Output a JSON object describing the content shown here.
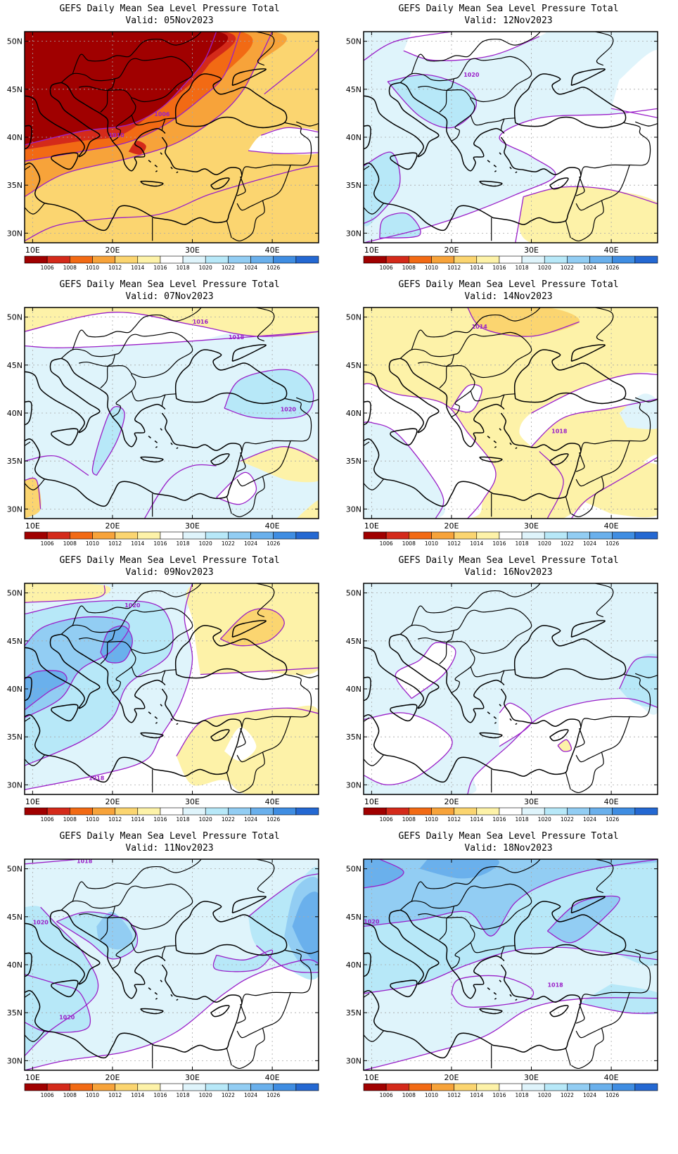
{
  "figure": {
    "panels": [
      {
        "title": "GEFS Daily Mean Sea Level Pressure Total",
        "valid": "Valid: 05Nov2023",
        "contour_labels": [
          "1006",
          "1010"
        ],
        "pressure_scenario": "low"
      },
      {
        "title": "GEFS Daily Mean Sea Level Pressure Total",
        "valid": "Valid: 12Nov2023",
        "contour_labels": [
          "1020"
        ],
        "pressure_scenario": "high-moderate"
      },
      {
        "title": "GEFS Daily Mean Sea Level Pressure Total",
        "valid": "Valid: 07Nov2023",
        "contour_labels": [
          "1016",
          "1018",
          "1020"
        ],
        "pressure_scenario": "moderate"
      },
      {
        "title": "GEFS Daily Mean Sea Level Pressure Total",
        "valid": "Valid: 14Nov2023",
        "contour_labels": [
          "1014",
          "1018"
        ],
        "pressure_scenario": "mixed"
      },
      {
        "title": "GEFS Daily Mean Sea Level Pressure Total",
        "valid": "Valid: 09Nov2023",
        "contour_labels": [
          "1020",
          "1018"
        ],
        "pressure_scenario": "high-west"
      },
      {
        "title": "GEFS Daily Mean Sea Level Pressure Total",
        "valid": "Valid: 16Nov2023",
        "contour_labels": [],
        "pressure_scenario": "moderate-high"
      },
      {
        "title": "GEFS Daily Mean Sea Level Pressure Total",
        "valid": "Valid: 11Nov2023",
        "contour_labels": [
          "1018",
          "1020",
          "1020"
        ],
        "pressure_scenario": "high"
      },
      {
        "title": "GEFS Daily Mean Sea Level Pressure Total",
        "valid": "Valid: 18Nov2023",
        "contour_labels": [
          "1020",
          "1018"
        ],
        "pressure_scenario": "high-north"
      }
    ],
    "lat_labels": [
      "50N",
      "45N",
      "40N",
      "35N",
      "30N"
    ],
    "lon_labels": [
      "10E",
      "20E",
      "30E",
      "40E"
    ],
    "colorbar": {
      "labels": [
        "1006",
        "1008",
        "1010",
        "1012",
        "1014",
        "1016",
        "1018",
        "1020",
        "1022",
        "1024",
        "1026"
      ],
      "colors": [
        "#a00000",
        "#d42a1a",
        "#f26a14",
        "#f7a33a",
        "#fbd570",
        "#fdf2a8",
        "#ffffff",
        "#dff4fb",
        "#b7e8f8",
        "#92cdf3",
        "#6ab0ec",
        "#3f8de2",
        "#2468d2"
      ]
    },
    "palette": {
      "contour_line": "#9a1fc8",
      "border_line": "#000000",
      "grid_line": "#a8a8a8"
    }
  }
}
